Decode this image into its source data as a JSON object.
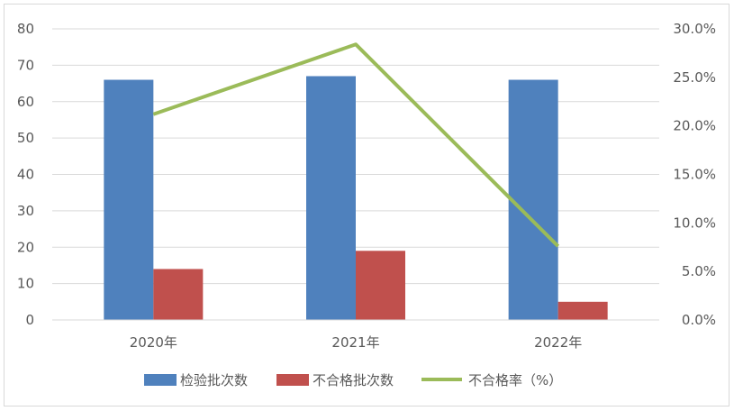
{
  "chart_data": {
    "type": "bar",
    "categories": [
      "2020年",
      "2021年",
      "2022年"
    ],
    "series": [
      {
        "name": "检验批次数",
        "type": "bar",
        "axis": "left",
        "color": "#4f81bd",
        "values": [
          66,
          67,
          66
        ]
      },
      {
        "name": "不合格批次数",
        "type": "bar",
        "axis": "left",
        "color": "#c0504d",
        "values": [
          14,
          19,
          5
        ]
      },
      {
        "name": "不合格率（%）",
        "type": "line",
        "axis": "right",
        "color": "#9bbb59",
        "values": [
          21.2,
          28.4,
          7.6
        ]
      }
    ],
    "y_left": {
      "ylim": [
        0,
        80
      ],
      "ticks": [
        "0",
        "10",
        "20",
        "30",
        "40",
        "50",
        "60",
        "70",
        "80"
      ]
    },
    "y_right": {
      "ylim": [
        0,
        30
      ],
      "ticks": [
        "0.0%",
        "5.0%",
        "10.0%",
        "15.0%",
        "20.0%",
        "25.0%",
        "30.0%"
      ]
    },
    "grid": true,
    "legend": "bottom"
  }
}
